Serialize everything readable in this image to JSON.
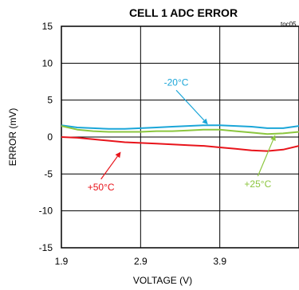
{
  "chart_data": {
    "type": "line",
    "title": "CELL 1 ADC ERROR",
    "code": "toc05",
    "xlabel": "VOLTAGE (V)",
    "ylabel": "ERROR (mV)",
    "xlim": [
      1.9,
      4.9
    ],
    "ylim": [
      -15,
      15
    ],
    "xticks": [
      1.9,
      2.9,
      3.9
    ],
    "xtick_labels": [
      "1.9",
      "2.9",
      "3.9"
    ],
    "yticks": [
      15,
      10,
      5,
      0,
      -5,
      -10,
      -15
    ],
    "ytick_labels": [
      "15",
      "10",
      "5",
      "0",
      "-5",
      "-10",
      "-15"
    ],
    "grid": true,
    "series": [
      {
        "name": "-20°C",
        "color": "#1ba6d8",
        "x": [
          1.9,
          2.1,
          2.3,
          2.5,
          2.7,
          2.9,
          3.1,
          3.3,
          3.5,
          3.7,
          3.9,
          4.1,
          4.3,
          4.5,
          4.7,
          4.9
        ],
        "y": [
          1.6,
          1.3,
          1.2,
          1.1,
          1.1,
          1.2,
          1.3,
          1.4,
          1.5,
          1.6,
          1.6,
          1.5,
          1.4,
          1.2,
          1.2,
          1.5
        ]
      },
      {
        "name": "+25°C",
        "color": "#8cc63f",
        "x": [
          1.9,
          2.1,
          2.3,
          2.5,
          2.7,
          2.9,
          3.1,
          3.3,
          3.5,
          3.7,
          3.9,
          4.1,
          4.3,
          4.5,
          4.7,
          4.9
        ],
        "y": [
          1.5,
          1.0,
          0.8,
          0.7,
          0.7,
          0.7,
          0.8,
          0.8,
          0.9,
          1.0,
          1.0,
          0.8,
          0.6,
          0.4,
          0.5,
          0.7
        ]
      },
      {
        "name": "+50°C",
        "color": "#e8141b",
        "x": [
          1.9,
          2.1,
          2.3,
          2.5,
          2.7,
          2.9,
          3.1,
          3.3,
          3.5,
          3.7,
          3.9,
          4.1,
          4.3,
          4.5,
          4.7,
          4.9
        ],
        "y": [
          0.0,
          -0.1,
          -0.3,
          -0.5,
          -0.7,
          -0.8,
          -0.9,
          -1.0,
          -1.1,
          -1.2,
          -1.4,
          -1.6,
          -1.8,
          -1.9,
          -1.7,
          -1.2
        ]
      }
    ],
    "annotations": [
      {
        "text": "-20°C",
        "color": "#1ba6d8",
        "series": 0,
        "label_at": [
          3.35,
          7.2
        ],
        "point_to": [
          3.75,
          1.7
        ]
      },
      {
        "text": "+25°C",
        "color": "#8cc63f",
        "series": 1,
        "label_at": [
          4.38,
          -6.6
        ],
        "point_to": [
          4.6,
          0.3
        ]
      },
      {
        "text": "+50°C",
        "color": "#e8141b",
        "series": 2,
        "label_at": [
          2.4,
          -7.0
        ],
        "point_to": [
          2.65,
          -2.0
        ]
      }
    ]
  }
}
